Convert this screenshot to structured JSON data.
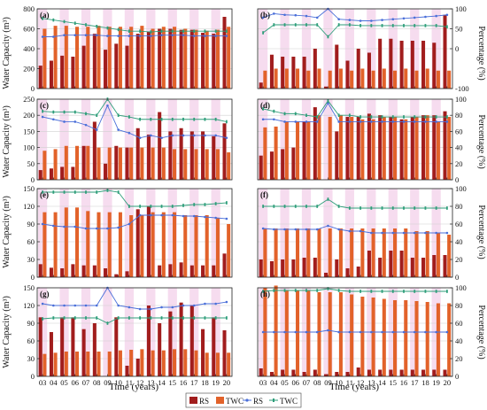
{
  "figure": {
    "ylabel_left": "Water Capacity (m³)",
    "ylabel_right": "Percentage (%)",
    "xlabel": "Time (years)",
    "years": [
      "03",
      "04",
      "05",
      "06",
      "07",
      "08",
      "09",
      "10",
      "11",
      "12",
      "13",
      "14",
      "15",
      "16",
      "17",
      "18",
      "19",
      "20"
    ],
    "legend": [
      "RS",
      "TWC",
      "RS",
      "TWC"
    ],
    "colors": {
      "rs_bar": "#a11d1d",
      "twc_bar": "#e2622a",
      "rs_line": "#4a6fd9",
      "twc_line": "#2e9e7a",
      "shade": "#f6dcef",
      "grid": "#d0d0d0"
    }
  },
  "chart_data": [
    {
      "panel": "(a)",
      "type": "bar",
      "ylim_left": [
        0,
        800
      ],
      "yticks_left": [
        "0",
        "200",
        "400",
        "600",
        "800"
      ],
      "ylim_right": [
        0,
        100
      ],
      "yticks_right": [],
      "series": [
        {
          "name": "RS",
          "values": [
            230,
            280,
            330,
            320,
            430,
            550,
            390,
            450,
            430,
            550,
            570,
            600,
            600,
            590,
            590,
            560,
            550,
            720
          ]
        },
        {
          "name": "TWC",
          "values": [
            600,
            630,
            630,
            620,
            620,
            630,
            620,
            620,
            620,
            630,
            600,
            620,
            620,
            600,
            590,
            580,
            590,
            620
          ]
        },
        {
          "name": "RS",
          "values": [
            65,
            65,
            67,
            67,
            67,
            67,
            66,
            66,
            66,
            66,
            66,
            67,
            67,
            67,
            66,
            66,
            66,
            66
          ]
        },
        {
          "name": "TWC",
          "values": [
            88,
            86,
            84,
            82,
            80,
            78,
            76,
            74,
            72,
            72,
            71,
            72,
            72,
            72,
            72,
            72,
            72,
            72
          ]
        }
      ]
    },
    {
      "panel": "(b)",
      "type": "bar",
      "ylim_left": [
        0,
        200
      ],
      "yticks_left": [],
      "ylim_right": [
        -100,
        100
      ],
      "yticks_right": [
        "-100",
        "0",
        "50",
        "100"
      ],
      "series": [
        {
          "name": "RS",
          "values": [
            15,
            85,
            80,
            80,
            80,
            100,
            5,
            110,
            70,
            100,
            90,
            125,
            125,
            120,
            120,
            120,
            115,
            185
          ]
        },
        {
          "name": "TWC",
          "values": [
            45,
            50,
            50,
            50,
            45,
            50,
            45,
            50,
            45,
            50,
            45,
            50,
            45,
            50,
            45,
            50,
            45,
            45
          ]
        },
        {
          "name": "RS",
          "values": [
            78,
            88,
            85,
            84,
            82,
            78,
            100,
            74,
            72,
            70,
            70,
            72,
            74,
            76,
            78,
            80,
            82,
            85
          ]
        },
        {
          "name": "TWC",
          "values": [
            40,
            60,
            60,
            60,
            60,
            60,
            30,
            60,
            60,
            58,
            58,
            58,
            58,
            58,
            58,
            58,
            58,
            55
          ]
        }
      ]
    },
    {
      "panel": "(c)",
      "type": "bar",
      "ylim_left": [
        0,
        250
      ],
      "yticks_left": [
        "0",
        "50",
        "100",
        "150",
        "200",
        "250"
      ],
      "ylim_right": [
        0,
        100
      ],
      "yticks_right": [],
      "series": [
        {
          "name": "RS",
          "values": [
            30,
            35,
            40,
            40,
            105,
            180,
            50,
            105,
            100,
            160,
            140,
            210,
            150,
            160,
            150,
            150,
            135,
            175
          ]
        },
        {
          "name": "TWC",
          "values": [
            90,
            95,
            105,
            105,
            105,
            100,
            100,
            100,
            100,
            100,
            100,
            100,
            95,
            95,
            95,
            95,
            95,
            85
          ]
        },
        {
          "name": "RS",
          "values": [
            78,
            75,
            72,
            72,
            68,
            62,
            92,
            62,
            58,
            52,
            55,
            52,
            55,
            55,
            55,
            55,
            55,
            52
          ]
        },
        {
          "name": "TWC",
          "values": [
            85,
            84,
            84,
            84,
            82,
            80,
            100,
            80,
            78,
            75,
            75,
            75,
            75,
            75,
            75,
            75,
            75,
            72
          ]
        }
      ]
    },
    {
      "panel": "(d)",
      "type": "bar",
      "ylim_left": [
        0,
        100
      ],
      "yticks_left": [],
      "ylim_right": [
        0,
        100
      ],
      "yticks_right": [
        "0",
        "20",
        "40",
        "60",
        "80",
        "100"
      ],
      "series": [
        {
          "name": "RS",
          "values": [
            30,
            35,
            38,
            40,
            72,
            90,
            0,
            60,
            78,
            78,
            82,
            80,
            78,
            75,
            78,
            80,
            80,
            85
          ]
        },
        {
          "name": "TWC",
          "values": [
            65,
            66,
            72,
            72,
            72,
            80,
            78,
            80,
            78,
            75,
            75,
            78,
            78,
            75,
            78,
            80,
            72,
            78
          ]
        },
        {
          "name": "RS",
          "values": [
            75,
            75,
            72,
            72,
            72,
            72,
            95,
            72,
            72,
            72,
            72,
            72,
            72,
            72,
            72,
            72,
            72,
            72
          ]
        },
        {
          "name": "TWC",
          "values": [
            88,
            85,
            82,
            82,
            80,
            78,
            98,
            80,
            80,
            78,
            78,
            78,
            78,
            78,
            78,
            78,
            78,
            78
          ]
        }
      ]
    },
    {
      "panel": "(e)",
      "type": "bar",
      "ylim_left": [
        0,
        150
      ],
      "yticks_left": [
        "0",
        "30",
        "60",
        "90",
        "120",
        "150"
      ],
      "ylim_right": [
        0,
        100
      ],
      "yticks_right": [],
      "series": [
        {
          "name": "RS",
          "values": [
            22,
            16,
            15,
            22,
            20,
            20,
            15,
            5,
            10,
            115,
            120,
            20,
            22,
            25,
            20,
            20,
            20,
            40
          ]
        },
        {
          "name": "TWC",
          "values": [
            110,
            110,
            118,
            118,
            112,
            110,
            110,
            110,
            105,
            105,
            110,
            110,
            110,
            105,
            105,
            105,
            100,
            90
          ]
        },
        {
          "name": "RS",
          "values": [
            60,
            58,
            57,
            57,
            55,
            55,
            55,
            56,
            60,
            70,
            70,
            70,
            70,
            69,
            69,
            68,
            67,
            66
          ]
        },
        {
          "name": "TWC",
          "values": [
            96,
            96,
            96,
            96,
            96,
            96,
            98,
            96,
            80,
            80,
            80,
            80,
            80,
            81,
            82,
            82,
            83,
            84
          ]
        }
      ]
    },
    {
      "panel": "(f)",
      "type": "bar",
      "ylim_left": [
        0,
        100
      ],
      "yticks_left": [],
      "ylim_right": [
        0,
        100
      ],
      "yticks_right": [
        "0",
        "20",
        "40",
        "60",
        "80",
        "100"
      ],
      "series": [
        {
          "name": "RS",
          "values": [
            20,
            18,
            20,
            20,
            22,
            22,
            5,
            20,
            10,
            12,
            30,
            22,
            30,
            30,
            22,
            22,
            25,
            25
          ]
        },
        {
          "name": "TWC",
          "values": [
            55,
            55,
            55,
            55,
            55,
            55,
            55,
            55,
            55,
            55,
            55,
            55,
            55,
            55,
            52,
            52,
            50,
            48
          ]
        },
        {
          "name": "RS",
          "values": [
            55,
            54,
            54,
            54,
            54,
            54,
            58,
            54,
            52,
            52,
            50,
            50,
            50,
            50,
            50,
            50,
            50,
            50
          ]
        },
        {
          "name": "TWC",
          "values": [
            80,
            80,
            80,
            80,
            80,
            80,
            88,
            80,
            78,
            78,
            78,
            78,
            78,
            78,
            78,
            78,
            78,
            78
          ]
        }
      ]
    },
    {
      "panel": "(g)",
      "type": "bar",
      "ylim_left": [
        0,
        150
      ],
      "yticks_left": [
        "0",
        "30",
        "60",
        "90",
        "120",
        "150"
      ],
      "ylim_right": [
        0,
        100
      ],
      "yticks_right": [],
      "series": [
        {
          "name": "RS",
          "values": [
            100,
            75,
            100,
            100,
            80,
            90,
            0,
            100,
            18,
            30,
            120,
            90,
            110,
            125,
            120,
            80,
            100,
            78
          ]
        },
        {
          "name": "TWC",
          "values": [
            38,
            40,
            42,
            42,
            42,
            42,
            42,
            44,
            45,
            46,
            44,
            44,
            46,
            46,
            44,
            40,
            40,
            40
          ]
        },
        {
          "name": "RS",
          "values": [
            82,
            80,
            80,
            80,
            80,
            80,
            100,
            80,
            78,
            76,
            76,
            78,
            78,
            80,
            80,
            82,
            82,
            84
          ]
        },
        {
          "name": "TWC",
          "values": [
            65,
            66,
            66,
            66,
            66,
            66,
            60,
            66,
            66,
            66,
            66,
            66,
            66,
            66,
            66,
            66,
            66,
            66
          ]
        }
      ]
    },
    {
      "panel": "(h)",
      "type": "bar",
      "ylim_left": [
        0,
        200
      ],
      "yticks_left": [],
      "ylim_right": [
        0,
        100
      ],
      "yticks_right": [
        "0",
        "20",
        "40",
        "60",
        "80",
        "100"
      ],
      "series": [
        {
          "name": "RS",
          "values": [
            18,
            10,
            15,
            15,
            10,
            15,
            5,
            10,
            10,
            20,
            15,
            15,
            15,
            15,
            15,
            15,
            15,
            15
          ]
        },
        {
          "name": "TWC",
          "values": [
            200,
            205,
            195,
            195,
            195,
            190,
            190,
            190,
            185,
            180,
            178,
            175,
            172,
            172,
            170,
            168,
            165,
            165
          ]
        },
        {
          "name": "RS",
          "values": [
            50,
            50,
            50,
            50,
            50,
            50,
            52,
            50,
            50,
            50,
            50,
            50,
            50,
            50,
            50,
            50,
            50,
            50
          ]
        },
        {
          "name": "TWC",
          "values": [
            96,
            97,
            97,
            97,
            97,
            97,
            99,
            97,
            96,
            96,
            96,
            96,
            96,
            96,
            96,
            96,
            96,
            96
          ]
        }
      ]
    }
  ]
}
